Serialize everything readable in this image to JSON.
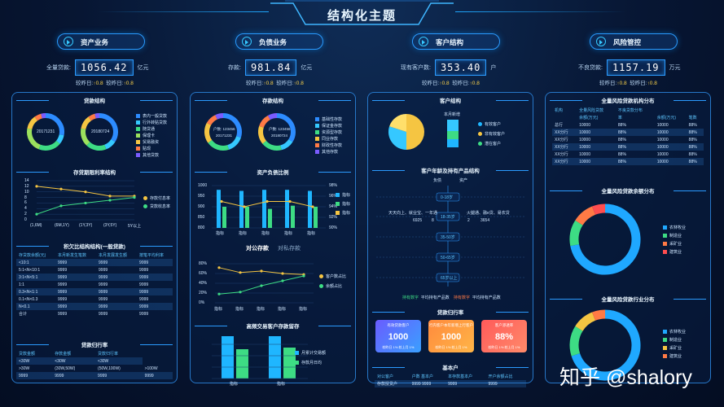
{
  "title": "结构化主题",
  "kpis": [
    {
      "head": "资产业务",
      "label": "全量贷款:",
      "value": "1056.42",
      "unit": "亿元",
      "sub_a": "较昨日:",
      "sub_a_v": "↑0.8",
      "sub_b": "较昨日:",
      "sub_b_v": "↑0.8"
    },
    {
      "head": "负债业务",
      "label": "存款:",
      "value": "981.84",
      "unit": "亿元",
      "sub_a": "较昨日:",
      "sub_a_v": "↑0.8",
      "sub_b": "较昨日:",
      "sub_b_v": "↑0.8"
    },
    {
      "head": "客户结构",
      "label": "现有客户数:",
      "value": "353.40",
      "unit": "户",
      "sub_a": "较昨日:",
      "sub_a_v": "↑0.8",
      "sub_b": "较昨日:",
      "sub_b_v": "↑0.8"
    },
    {
      "head": "风险管控",
      "label": "不良贷款:",
      "value": "1157.19",
      "unit": "万元",
      "sub_a": "较昨日:",
      "sub_a_v": "↑0.8",
      "sub_b": "较昨日:",
      "sub_b_v": "↑0.8"
    }
  ],
  "p1": {
    "s1": "贷款结构",
    "d1": "20171231",
    "d2": "20180724",
    "legend": [
      "表内一般贷款",
      "行外转贴贷款",
      "随贷通",
      "保理卡",
      "贸易融资",
      "贴现",
      "其他贷款"
    ],
    "s2": "存贷期限利率结构",
    "l2": [
      "存款付息率",
      "贷款收息率"
    ],
    "ylabels": [
      "14",
      "12",
      "10",
      "8",
      "6",
      "4",
      "2",
      "0"
    ],
    "xlabels": [
      "(1,6M)",
      "(6M,1Y)",
      "(1Y,3Y)",
      "(3Y,5Y)",
      "5Y以上"
    ],
    "s3": "积欠比结构结构(一般贷款)",
    "t3_head": [
      "存贷款余额(元)",
      "本月新发生笔数",
      "本月发展发生额",
      "按笔平均利率"
    ],
    "t3_rows": [
      [
        "<10:1",
        "9999",
        "9999",
        "9999"
      ],
      [
        "5:1<N<10:1",
        "9999",
        "9999",
        "9999"
      ],
      [
        "3:1<N<5:1",
        "9999",
        "9999",
        "9999"
      ],
      [
        "1:1",
        "9999",
        "9999",
        "9999"
      ],
      [
        "0.3<N<1:1",
        "9999",
        "9999",
        "9999"
      ],
      [
        "0.1<N<0.3",
        "9999",
        "9999",
        "9999"
      ],
      [
        "N<0.1",
        "9999",
        "9999",
        "9999"
      ],
      [
        "合计",
        "9999",
        "9999",
        "9999"
      ]
    ],
    "s4": "贷款归行率",
    "t4_head": [
      "贷款金额",
      "存款金额",
      "贷款归行率"
    ],
    "t4_rows": [
      [
        "<30W",
        "<30W",
        "<30W"
      ],
      [
        ">30W",
        "(30W,50W)",
        "(50W,100W)",
        ">100W"
      ],
      [
        "9999",
        "9999",
        "9999",
        "9999"
      ]
    ]
  },
  "p2": {
    "s1": "存款结构",
    "d1": "户数: 123456",
    "d1b": "20171231",
    "d2": "户数: 123456",
    "d2b": "20180724",
    "legend": [
      "基础性存款",
      "保证金存款",
      "资源型存款",
      "同业存款",
      "财政性存款",
      "其他存款"
    ],
    "s2": "资产负债比例",
    "bar_ylabels": [
      "1000",
      "950",
      "900",
      "850",
      "800"
    ],
    "bar_y2labels": [
      "98%",
      "96%",
      "94%",
      "92%",
      "90%"
    ],
    "bar_x": [
      "指标",
      "指标",
      "指标",
      "指标",
      "指标"
    ],
    "bar_legend": [
      "指标",
      "指标",
      "指标"
    ],
    "tab_a": "对公存款",
    "tab_b": "对私存款",
    "line_ylabels": [
      "80%",
      "60%",
      "40%",
      "20%",
      "0%"
    ],
    "line_x": [
      "指标",
      "指标",
      "指标",
      "指标",
      "指标"
    ],
    "line_legend": [
      "客户数占比",
      "余额占比"
    ],
    "s3": "高频交易客户存款留存",
    "b3_legend": [
      "月累计交易额",
      "存款月日均"
    ],
    "b3_x": [
      "指标",
      "指标"
    ]
  },
  "p3": {
    "s1": "客户结构",
    "pie_label": "本月新增",
    "legend": [
      "有效客户",
      "非有效客户",
      "潜在客户"
    ],
    "s2": "客户年龄及持有产品结构",
    "col_a": "负债",
    "col_b": "资产",
    "ages": [
      "0-18岁",
      "18-35岁",
      "35-50岁",
      "50-65岁",
      "65岁以上"
    ],
    "left_txt": "天天向上、就业宝、一年通",
    "left_n1": "6925",
    "left_n2": "8",
    "right_txt": "火腿通、融e贷、易农贷",
    "right_n1": "2",
    "right_n2": "3654",
    "foot_a": "持有数字",
    "foot_b": "平均持有产品数",
    "foot_c": "持有数字",
    "foot_d": "平均持有产品数",
    "s3": "贷款归行率",
    "cards": [
      {
        "t": "有效贷款客户",
        "v": "1000",
        "s": "较昨日 1%   较上月 1%"
      },
      {
        "t": "行内客户本年新增上行客户",
        "v": "1000",
        "s": "较昨日 1%   较上月 1%"
      },
      {
        "t": "客户渗透率",
        "v": "88%",
        "s": "较昨日 1%   较上月 1%"
      }
    ],
    "s4": "基本户",
    "t4_head": [
      "对公客户",
      "户数   基本户",
      "本存款基本户",
      "开户余额占比"
    ],
    "t4_rows": [
      [
        "存款授贷户",
        "9999   9999",
        "9999",
        "9999"
      ]
    ]
  },
  "p4": {
    "s1": "全量风险贷款机构分布",
    "t1_head": [
      "机构",
      "全量风险贷款",
      "不良贷款分布"
    ],
    "t1_sub": [
      "余额(万元)",
      "率",
      "余额(万元)",
      "笔数"
    ],
    "t1_rows": [
      [
        "总行",
        "10000",
        "88%",
        "10000",
        "88%"
      ],
      [
        "XX分行",
        "10000",
        "88%",
        "10000",
        "88%"
      ],
      [
        "XX分行",
        "10000",
        "88%",
        "10000",
        "88%"
      ],
      [
        "XX分行",
        "10000",
        "88%",
        "10000",
        "88%"
      ],
      [
        "XX分行",
        "10000",
        "88%",
        "10000",
        "88%"
      ],
      [
        "XX分行",
        "10000",
        "88%",
        "10000",
        "88%"
      ]
    ],
    "s2": "全量风险贷款余额分布",
    "s3": "全量风险贷款行业分布",
    "legend": [
      "农林牧业",
      "制造业",
      "采矿业",
      "建筑业"
    ]
  },
  "watermark": "知乎 @shalory",
  "colors": {
    "accent": "#35c8ff",
    "green": "#3ddc84",
    "yellow": "#f5c542",
    "orange": "#ff7a45",
    "red": "#ff4d4f",
    "purple": "#7a5cff",
    "blue": "#2d8cff"
  }
}
